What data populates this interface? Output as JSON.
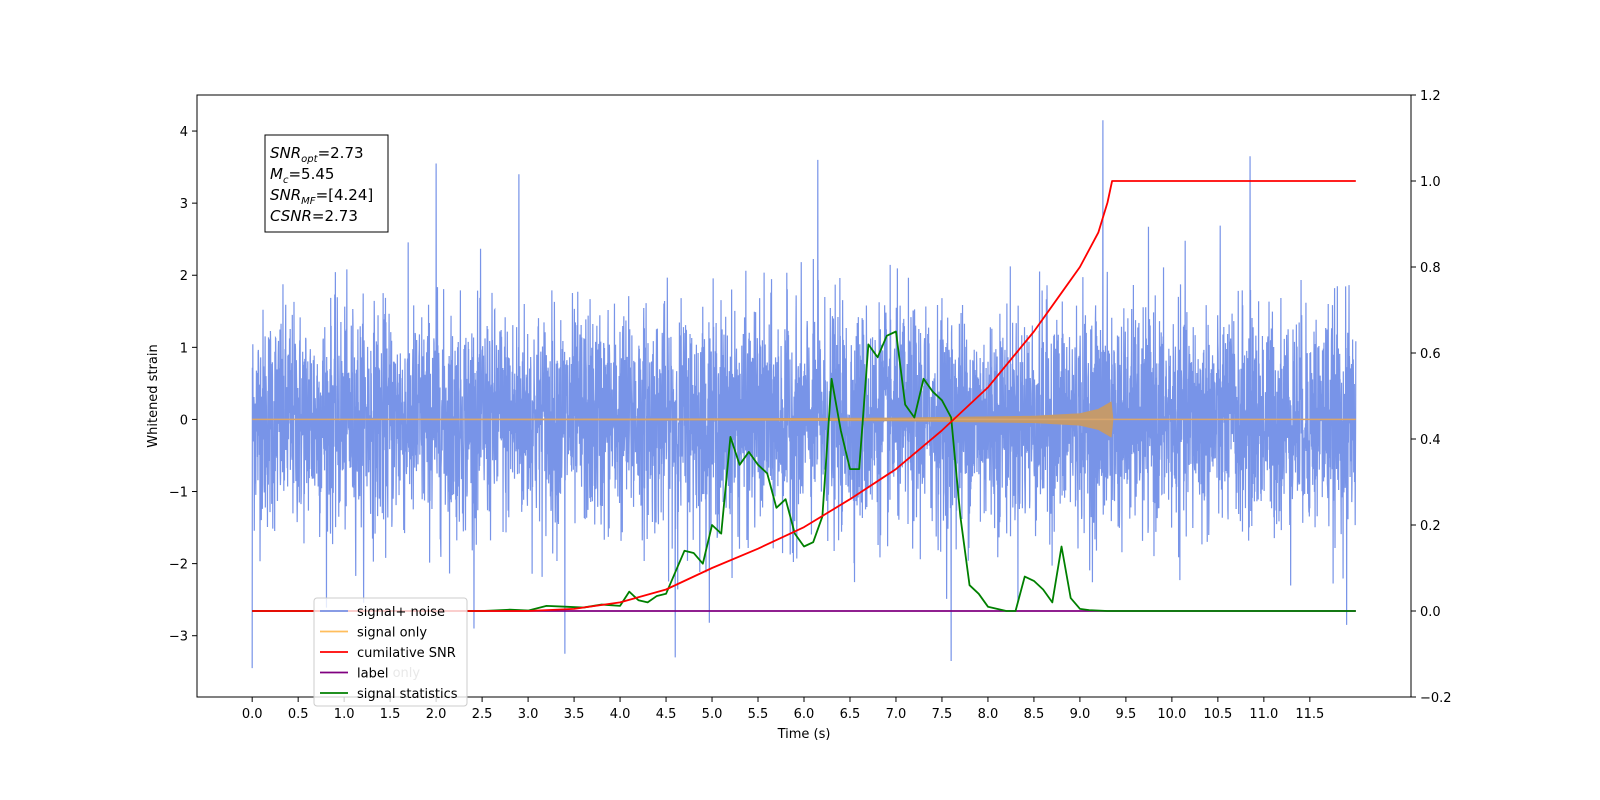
{
  "chart_data": {
    "type": "line",
    "xlabel": "Time (s)",
    "ylabel": "Whitened strain",
    "xlim": [
      -0.6,
      12.6
    ],
    "ylim": [
      -3.85,
      4.5
    ],
    "y2lim": [
      -0.2,
      1.2
    ],
    "x_ticks": [
      0.0,
      0.5,
      1.0,
      1.5,
      2.0,
      2.5,
      3.0,
      3.5,
      4.0,
      4.5,
      5.0,
      5.5,
      6.0,
      6.5,
      7.0,
      7.5,
      8.0,
      8.5,
      9.0,
      9.5,
      10.0,
      10.5,
      11.0,
      11.5
    ],
    "x_tick_labels": [
      "0.0",
      "0.5",
      "1.0",
      "1.5",
      "2.0",
      "2.5",
      "3.0",
      "3.5",
      "4.0",
      "4.5",
      "5.0",
      "5.5",
      "6.0",
      "6.5",
      "7.0",
      "7.5",
      "8.0",
      "8.5",
      "9.0",
      "9.5",
      "10.0",
      "10.5",
      "11.0",
      "11.5"
    ],
    "y_ticks": [
      -3,
      -2,
      -1,
      0,
      1,
      2,
      3,
      4
    ],
    "y_tick_labels": [
      "−3",
      "−2",
      "−1",
      "0",
      "1",
      "2",
      "3",
      "4"
    ],
    "y2_ticks": [
      -0.2,
      0.0,
      0.2,
      0.4,
      0.6,
      0.8,
      1.0,
      1.2
    ],
    "y2_tick_labels": [
      "−0.2",
      "0.0",
      "0.2",
      "0.4",
      "0.6",
      "0.8",
      "1.0",
      "1.2"
    ],
    "annotation": [
      {
        "base": "SNR",
        "sub": "opt",
        "value": "=2.73"
      },
      {
        "base": "M",
        "sub": "c",
        "value": "=5.45"
      },
      {
        "base": "SNR",
        "sub": "MF",
        "value": "=[4.24]"
      },
      {
        "base": "CSNR",
        "sub": "",
        "value": "=2.73"
      }
    ],
    "legend_position": "lower-left",
    "series": [
      {
        "name": "signal+ noise",
        "axis": "left",
        "color": "#7894e8",
        "style": "noise",
        "x_range": [
          0.0,
          12.0
        ],
        "envelope_y": [
          -1.6,
          1.6
        ],
        "notable_peaks": [
          {
            "x": 0.0,
            "y": -3.45
          },
          {
            "x": 2.0,
            "y": 3.55
          },
          {
            "x": 2.9,
            "y": 3.4
          },
          {
            "x": 3.4,
            "y": -3.25
          },
          {
            "x": 4.6,
            "y": -3.3
          },
          {
            "x": 6.15,
            "y": 3.6
          },
          {
            "x": 7.6,
            "y": -3.35
          },
          {
            "x": 9.25,
            "y": 4.15
          },
          {
            "x": 10.85,
            "y": 3.65
          },
          {
            "x": 11.9,
            "y": -2.85
          }
        ]
      },
      {
        "name": "signal only",
        "axis": "left",
        "color": "#ffbe5c",
        "style": "chirp",
        "x": [
          0.0,
          3.0,
          5.0,
          7.0,
          8.5,
          9.0,
          9.2,
          9.35,
          9.36,
          12.0
        ],
        "amplitude": [
          0.0,
          0.005,
          0.01,
          0.02,
          0.045,
          0.08,
          0.14,
          0.25,
          0.0,
          0.0
        ]
      },
      {
        "name": "cumilative SNR",
        "axis": "right",
        "color": "#ff0000",
        "style": "line",
        "x": [
          0.0,
          2.7,
          3.0,
          3.5,
          4.0,
          4.5,
          5.0,
          5.5,
          6.0,
          6.5,
          7.0,
          7.5,
          8.0,
          8.5,
          8.8,
          9.0,
          9.2,
          9.3,
          9.35,
          12.0
        ],
        "y": [
          0.0,
          0.0,
          0.0,
          0.005,
          0.02,
          0.05,
          0.1,
          0.145,
          0.195,
          0.26,
          0.33,
          0.42,
          0.52,
          0.65,
          0.74,
          0.8,
          0.88,
          0.95,
          1.0,
          1.0
        ]
      },
      {
        "name": "label",
        "axis": "right",
        "color": "#800080",
        "style": "line",
        "x": [
          0.0,
          12.0
        ],
        "y": [
          0.0,
          0.0
        ]
      },
      {
        "name": "signal statistics",
        "axis": "right",
        "color": "#008000",
        "style": "line",
        "x": [
          0.0,
          2.5,
          2.8,
          3.0,
          3.2,
          3.4,
          3.6,
          3.8,
          4.0,
          4.1,
          4.2,
          4.3,
          4.4,
          4.5,
          4.6,
          4.7,
          4.8,
          4.9,
          5.0,
          5.1,
          5.2,
          5.3,
          5.4,
          5.5,
          5.6,
          5.7,
          5.8,
          5.9,
          6.0,
          6.1,
          6.2,
          6.3,
          6.4,
          6.5,
          6.6,
          6.7,
          6.8,
          6.9,
          7.0,
          7.1,
          7.2,
          7.3,
          7.4,
          7.5,
          7.6,
          7.7,
          7.8,
          7.9,
          8.0,
          8.2,
          8.3,
          8.4,
          8.5,
          8.6,
          8.7,
          8.8,
          8.9,
          9.0,
          9.1,
          9.3,
          12.0
        ],
        "y": [
          0.0,
          0.0,
          0.003,
          0.001,
          0.012,
          0.01,
          0.008,
          0.015,
          0.012,
          0.045,
          0.025,
          0.02,
          0.035,
          0.04,
          0.09,
          0.14,
          0.135,
          0.11,
          0.2,
          0.18,
          0.405,
          0.34,
          0.37,
          0.34,
          0.32,
          0.24,
          0.26,
          0.18,
          0.15,
          0.16,
          0.22,
          0.54,
          0.42,
          0.33,
          0.33,
          0.62,
          0.59,
          0.64,
          0.65,
          0.48,
          0.45,
          0.54,
          0.51,
          0.49,
          0.45,
          0.22,
          0.06,
          0.04,
          0.01,
          0.0,
          0.0,
          0.08,
          0.07,
          0.05,
          0.02,
          0.15,
          0.03,
          0.005,
          0.002,
          0.0,
          0.0
        ]
      }
    ],
    "legend_entries": [
      "signal+ noise",
      "signal only",
      "cumilative SNR",
      "label",
      "signal statistics"
    ],
    "hidden_legend_label": "label only"
  }
}
